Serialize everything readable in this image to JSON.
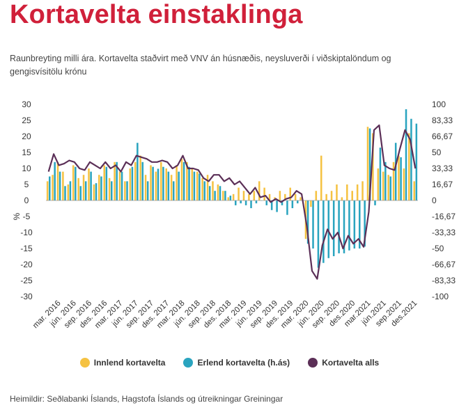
{
  "title": "Kortavelta einstaklinga",
  "subtitle": "Raunbreyting milli ára. Kortavelta staðvirt með VNV án húsnæðis, neysluverði í viðskiptalöndum og gengisvísitölu krónu",
  "source": "Heimildir: Seðlabanki Íslands, Hagstofa Íslands og útreikningar Greiningar",
  "legend": {
    "domestic": "Innlend kortavelta",
    "foreign": "Erlend kortavelta (h.ás)",
    "total": "Kortavelta alls"
  },
  "colors": {
    "domestic": "#f5c242",
    "foreign": "#2aa4bf",
    "total": "#5b2f57",
    "title": "#d0203a"
  },
  "chart_data": {
    "type": "bar",
    "ylabel": "%",
    "left_axis": {
      "ylim": [
        -30,
        30
      ],
      "ticks": [
        "30",
        "25",
        "20",
        "15",
        "10",
        "5",
        "0",
        "-5",
        "-10",
        "-15",
        "-20",
        "-25",
        "-30"
      ]
    },
    "right_axis": {
      "ylim": [
        -100,
        100
      ],
      "ticks": [
        "100",
        "83,33",
        "66,67",
        "50",
        "33,33",
        "16,67",
        "0",
        "-16,67",
        "-33,33",
        "-50",
        "-66,67",
        "-83,33",
        "-100"
      ]
    },
    "x_tick_labels": [
      "mar. 2016",
      "jún. 2016",
      "sep. 2016",
      "des. 2016",
      "mar. 2017",
      "jún. 2017",
      "sep. 2017",
      "des. 2017",
      "mar. 2018",
      "jún. 2018",
      "sep. 2018",
      "des. 2018",
      "mar. 2019",
      "jún. 2019",
      "sep. 2019",
      "des. 2019",
      "mar. 2020",
      "jún. 2020",
      "sep. 2020",
      "des.2020",
      "mar.2021",
      "jún.2021",
      "sep.2021",
      "des.2021"
    ],
    "categories": [
      "jan. 2016",
      "feb. 2016",
      "mar. 2016",
      "apr. 2016",
      "maí 2016",
      "jún. 2016",
      "júl. 2016",
      "ágú. 2016",
      "sep. 2016",
      "okt. 2016",
      "nóv. 2016",
      "des. 2016",
      "jan. 2017",
      "feb. 2017",
      "mar. 2017",
      "apr. 2017",
      "maí 2017",
      "jún. 2017",
      "júl. 2017",
      "ágú. 2017",
      "sep. 2017",
      "okt. 2017",
      "nóv. 2017",
      "des. 2017",
      "jan. 2018",
      "feb. 2018",
      "mar. 2018",
      "apr. 2018",
      "maí 2018",
      "jún. 2018",
      "júl. 2018",
      "ágú. 2018",
      "sep. 2018",
      "okt. 2018",
      "nóv. 2018",
      "des. 2018",
      "jan. 2019",
      "feb. 2019",
      "mar. 2019",
      "apr. 2019",
      "maí 2019",
      "jún. 2019",
      "júl. 2019",
      "ágú. 2019",
      "sep. 2019",
      "okt. 2019",
      "nóv. 2019",
      "des. 2019",
      "jan. 2020",
      "feb. 2020",
      "mar. 2020",
      "apr. 2020",
      "maí 2020",
      "jún. 2020",
      "júl. 2020",
      "ágú. 2020",
      "sep. 2020",
      "okt. 2020",
      "nóv. 2020",
      "des. 2020",
      "jan. 2021",
      "feb. 2021",
      "mar. 2021",
      "apr. 2021",
      "maí 2021",
      "jún. 2021",
      "júl. 2021",
      "ágú. 2021",
      "sep. 2021",
      "okt. 2021",
      "nóv. 2021",
      "des. 2021"
    ],
    "series": [
      {
        "name": "Innlend kortavelta",
        "axis": "left",
        "values": [
          6,
          8,
          12,
          9,
          5,
          11,
          7,
          8,
          10,
          5,
          8,
          11,
          7,
          12,
          9,
          6,
          10,
          12,
          14,
          8,
          11,
          9,
          12,
          10,
          8,
          11,
          13,
          12,
          10,
          9,
          7,
          8,
          6,
          5,
          3,
          1,
          2,
          4,
          3,
          2,
          3,
          6,
          4,
          2,
          1,
          3,
          2,
          4,
          2,
          1,
          -12,
          -2,
          3,
          14,
          2,
          3,
          5,
          1,
          5,
          3,
          5,
          6,
          23,
          21,
          10,
          9,
          8,
          12,
          14,
          10,
          21,
          6
        ],
        "values_note": "Read approximately from bars."
      },
      {
        "name": "Erlend kortavelta (h.ás)",
        "axis": "right",
        "values": [
          25,
          40,
          30,
          15,
          20,
          35,
          15,
          20,
          30,
          18,
          25,
          35,
          20,
          40,
          30,
          20,
          35,
          60,
          40,
          20,
          35,
          33,
          35,
          30,
          20,
          30,
          40,
          35,
          30,
          28,
          20,
          15,
          10,
          15,
          10,
          5,
          -5,
          -3,
          -5,
          -8,
          -3,
          0,
          -5,
          -10,
          -12,
          -5,
          -15,
          -8,
          -3,
          0,
          -45,
          -50,
          -70,
          -65,
          -60,
          -58,
          -55,
          -55,
          -52,
          -50,
          -50,
          -48,
          75,
          -5,
          55,
          40,
          25,
          60,
          45,
          95,
          85,
          80
        ],
        "values_note": "Right-axis scale; read approximately."
      },
      {
        "name": "Kortavelta alls",
        "axis": "left",
        "values": [
          9,
          14.5,
          11,
          11.5,
          12.5,
          12,
          10,
          9.5,
          12,
          11,
          10,
          12,
          10,
          11,
          9,
          12,
          11,
          14,
          13.5,
          13,
          12,
          12,
          12.5,
          12,
          10,
          11,
          14,
          10,
          10,
          9.5,
          7,
          6,
          8,
          8,
          6,
          7,
          5,
          6,
          4,
          2,
          4,
          1,
          1.5,
          -0.5,
          0.5,
          -0.5,
          0.5,
          1,
          3,
          2,
          -8,
          -22,
          -24.5,
          -14,
          -9,
          -12,
          -10,
          -15,
          -11,
          -13.5,
          -12,
          -14.5,
          -3.5,
          22,
          23.5,
          11,
          10,
          9.5,
          16,
          22,
          19,
          10
        ]
      }
    ]
  }
}
